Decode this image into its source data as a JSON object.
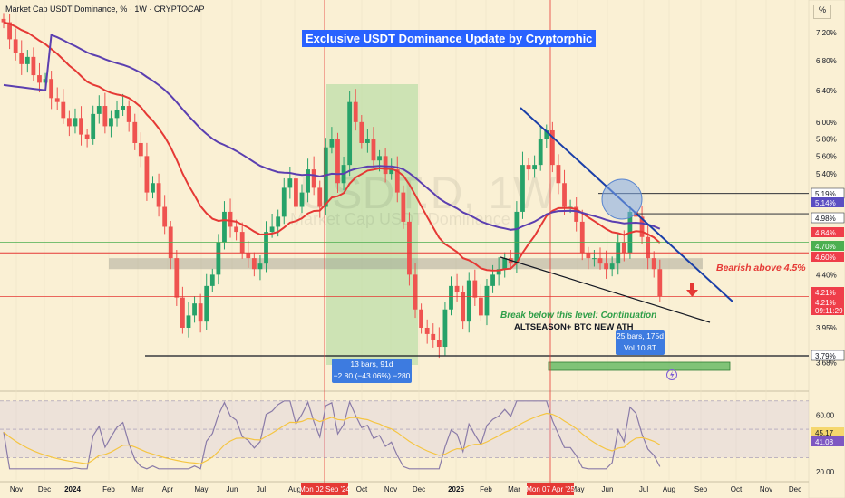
{
  "header": {
    "symbol_line": "Market Cap USDT Dominance, %  ·  1W  ·  CRYPTOCAP",
    "unit_button": "%"
  },
  "banner": {
    "title": "Exclusive USDT Dominance Update by Cryptorphic"
  },
  "watermark": {
    "main": "USDT.D, 1W",
    "sub": "Market Cap USDT Dominance"
  },
  "annotations": {
    "bearish": "Bearish above 4.5%",
    "breakdown": "Break below this level: Continuation",
    "altseason": "ALTSEASON+ BTC NEW ATH",
    "measure1_line1": "13 bars, 91d",
    "measure1_line2": "−2.80 (−43.06%) −280",
    "measure2_line1": "25 bars, 175d",
    "measure2_line2": "Vol 10.8T"
  },
  "axis": {
    "price_ticks": [
      "7.20%",
      "6.80%",
      "6.40%",
      "6.00%",
      "5.80%",
      "5.60%",
      "5.40%",
      "4.40%",
      "4.10%",
      "3.95%",
      "3.68%"
    ],
    "price_labels": [
      {
        "text": "5.19%",
        "color": "#131722",
        "bg": "#ffffff"
      },
      {
        "text": "5.14%",
        "color": "#ffffff",
        "bg": "#5b4ec2"
      },
      {
        "text": "4.98%",
        "color": "#131722",
        "bg": "#ffffff"
      },
      {
        "text": "4.84%",
        "color": "#ffffff",
        "bg": "#ef3e4a"
      },
      {
        "text": "4.70%",
        "color": "#ffffff",
        "bg": "#4caf50"
      },
      {
        "text": "4.60%",
        "color": "#ffffff",
        "bg": "#ef3e4a"
      },
      {
        "text": "4.21%",
        "color": "#ffffff",
        "bg": "#ef3e4a"
      },
      {
        "text": "4.21%",
        "color": "#ffffff",
        "bg": "#ef3e4a"
      },
      {
        "text": "09:11:29",
        "color": "#ffffff",
        "bg": "#ef3e4a"
      },
      {
        "text": "3.79%",
        "color": "#131722",
        "bg": "#ffffff"
      }
    ],
    "rsi_ticks": [
      "60.00",
      "20.00"
    ],
    "rsi_labels": [
      {
        "text": "45.17",
        "color": "#131722",
        "bg": "#f5d76e"
      },
      {
        "text": "41.08",
        "color": "#ffffff",
        "bg": "#7e57c2"
      }
    ],
    "time_labels": [
      "Nov",
      "Dec",
      "2024",
      "Feb",
      "Mar",
      "Apr",
      "May",
      "Jun",
      "Jul",
      "Aug",
      "Oct",
      "Nov",
      "Dec",
      "2025",
      "Feb",
      "Mar",
      "May",
      "Jun",
      "Jul",
      "Aug",
      "Sep",
      "Oct",
      "Nov",
      "Dec"
    ],
    "time_markers": [
      "Mon 02 Sep '24",
      "Mon 07 Apr '25"
    ]
  },
  "colors": {
    "bg": "#faf0d4",
    "up": "#26a269",
    "down": "#ef5350",
    "ema_fast": "#e53935",
    "ema_slow": "#5b3fb0",
    "trendline": "#1a3fa8",
    "rsi": "#8a7ba8",
    "rsi_ma": "#f5c542"
  },
  "chart_data": {
    "type": "candlestick",
    "timeframe": "1W",
    "series": [
      {
        "name": "USDT Dominance",
        "values": [
          7.35,
          7.1,
          6.9,
          6.75,
          6.85,
          6.6,
          6.5,
          6.55,
          6.3,
          6.25,
          6.05,
          5.95,
          6.05,
          5.85,
          5.8,
          6.1,
          6.2,
          5.95,
          6.05,
          6.15,
          6.2,
          6.0,
          5.75,
          5.6,
          5.2,
          5.3,
          5.05,
          4.85,
          4.55,
          4.2,
          3.95,
          4.05,
          4.15,
          4.0,
          4.3,
          4.4,
          4.7,
          5.0,
          4.85,
          4.8,
          4.6,
          4.55,
          4.45,
          4.5,
          4.8,
          4.85,
          4.95,
          5.25,
          5.35,
          5.05,
          5.2,
          5.45,
          5.25,
          5.05,
          5.7,
          5.8,
          5.3,
          5.5,
          6.25,
          6.0,
          5.75,
          5.8,
          5.55,
          5.6,
          5.4,
          5.45,
          5.2,
          4.9,
          4.4,
          4.1,
          3.95,
          3.9,
          3.85,
          3.8,
          4.1,
          4.3,
          4.25,
          4.0,
          4.35,
          4.2,
          4.05,
          4.3,
          4.4,
          4.45,
          4.55,
          4.5,
          5.0,
          5.5,
          5.45,
          5.5,
          5.8,
          5.9,
          5.5,
          5.3,
          5.05,
          5.05,
          4.9,
          4.6,
          4.55,
          4.55,
          4.5,
          4.45,
          4.5,
          4.7,
          4.6,
          5.0,
          4.95,
          4.75,
          4.55,
          4.45,
          4.21
        ]
      }
    ],
    "x_range": [
      "Oct 2023",
      "Dec 2025"
    ],
    "ylim": [
      3.55,
      7.55
    ],
    "key_levels": [
      5.19,
      4.98,
      4.7,
      4.6,
      4.21,
      3.79
    ],
    "rsi": {
      "last": 41.08,
      "ma": 45.17,
      "ylim": [
        18,
        75
      ]
    }
  }
}
